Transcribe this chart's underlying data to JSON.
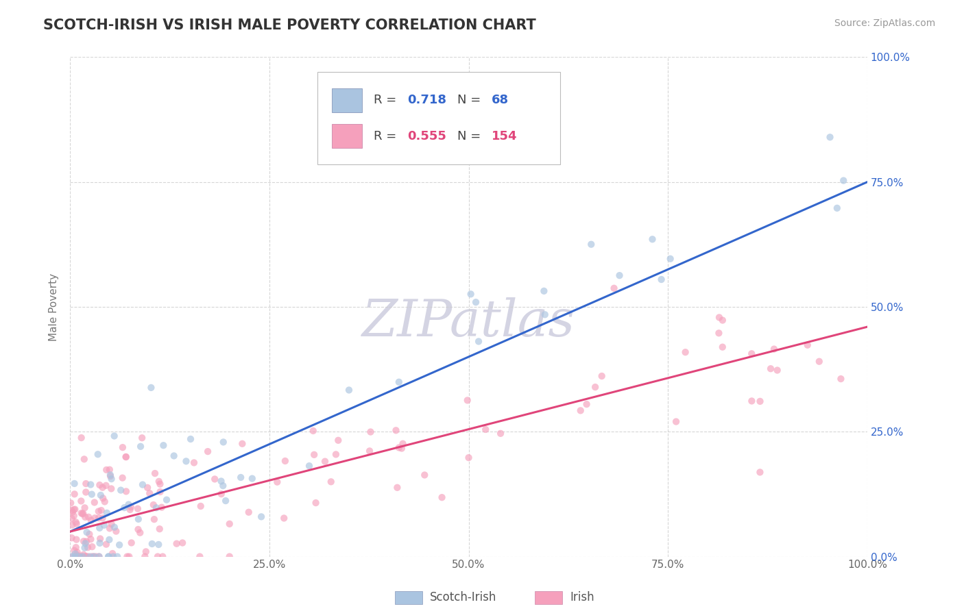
{
  "title": "SCOTCH-IRISH VS IRISH MALE POVERTY CORRELATION CHART",
  "source_text": "Source: ZipAtlas.com",
  "ylabel": "Male Poverty",
  "watermark": "ZIPatlas",
  "series": [
    {
      "name": "Scotch-Irish",
      "color": "#aac4e0",
      "R": 0.718,
      "N": 68,
      "line_x": [
        0,
        100
      ],
      "line_y": [
        5.0,
        75.0
      ]
    },
    {
      "name": "Irish",
      "color": "#f5a0bc",
      "R": 0.555,
      "N": 154,
      "line_x": [
        0,
        100
      ],
      "line_y": [
        5.0,
        46.0
      ]
    }
  ],
  "xlim": [
    0,
    100
  ],
  "ylim": [
    0,
    100
  ],
  "xtick_vals": [
    0,
    25,
    50,
    75,
    100
  ],
  "xtick_labels": [
    "0.0%",
    "25.0%",
    "50.0%",
    "75.0%",
    "100.0%"
  ],
  "ytick_vals": [
    0,
    25,
    50,
    75,
    100
  ],
  "ytick_labels_right": [
    "0.0%",
    "25.0%",
    "50.0%",
    "75.0%",
    "100.0%"
  ],
  "grid_color": "#cccccc",
  "background_color": "#ffffff",
  "title_color": "#333333",
  "title_fontsize": 15,
  "axis_label_fontsize": 11,
  "legend_fontsize": 13,
  "watermark_color": "#d0d0e0",
  "watermark_fontsize": 54,
  "source_fontsize": 10,
  "source_color": "#999999",
  "scatter_size": 55,
  "scatter_alpha": 0.65,
  "line_width": 2.2,
  "r_color_blue": "#3366cc",
  "r_color_pink": "#e0457a",
  "line_color_blue": "#3366cc",
  "line_color_pink": "#e0457a",
  "right_tick_color": "#3366cc",
  "bottom_legend_label1": "Scotch-Irish",
  "bottom_legend_label2": "Irish"
}
